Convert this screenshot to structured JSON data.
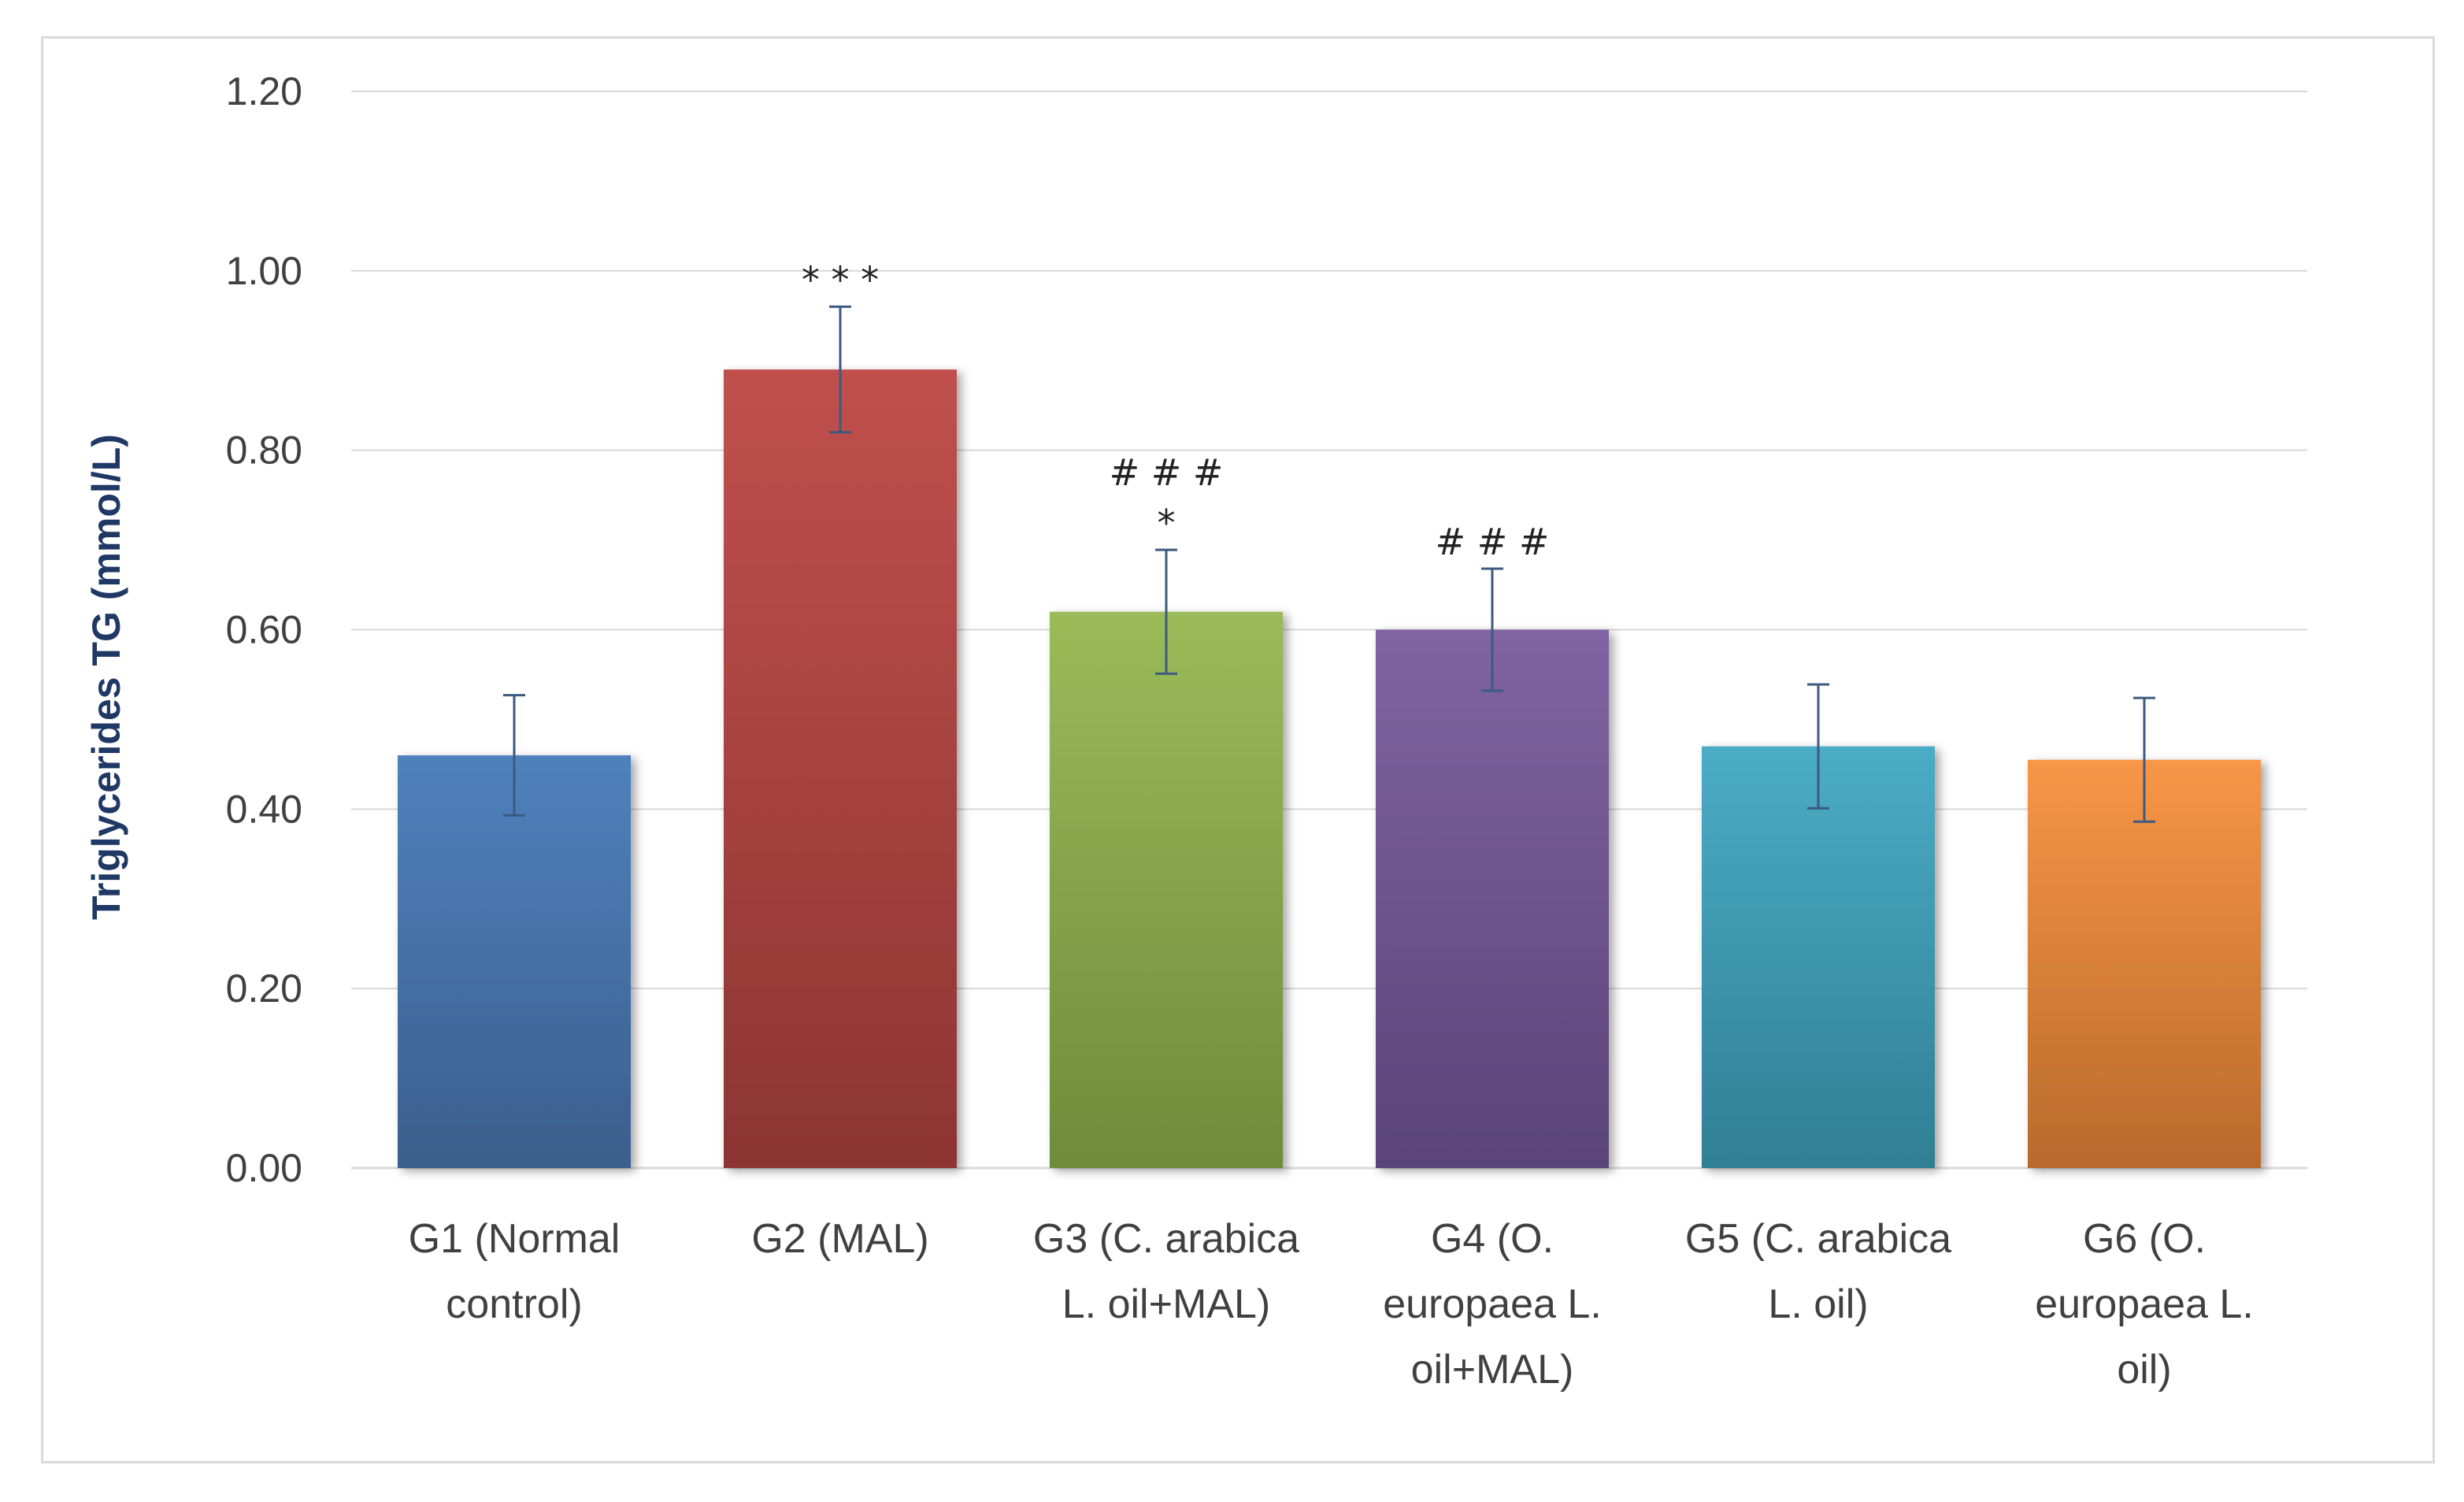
{
  "chart_data": {
    "type": "bar",
    "title": "",
    "xlabel": "",
    "ylabel": "Triglycerides TG (mmol/L)",
    "ylim": [
      0,
      1.2
    ],
    "yticks": [
      "0.00",
      "0.20",
      "0.40",
      "0.60",
      "0.80",
      "1.00",
      "1.20"
    ],
    "grid": true,
    "categories": [
      [
        "G1 (Normal",
        "control)"
      ],
      [
        "G2 (MAL)"
      ],
      [
        "G3 (C. arabica",
        "L. oil+MAL)"
      ],
      [
        "G4 (O.",
        "europaea L.",
        "oil+MAL)"
      ],
      [
        "G5 (C. arabica",
        "L. oil)"
      ],
      [
        "G6 (O.",
        "europaea L.",
        "oil)"
      ]
    ],
    "values": [
      0.46,
      0.89,
      0.62,
      0.6,
      0.47,
      0.455
    ],
    "errors": [
      0.067,
      0.07,
      0.069,
      0.068,
      0.069,
      0.069
    ],
    "annotations": [
      [],
      [
        "* * *"
      ],
      [
        "# # #",
        "*"
      ],
      [
        "# # #"
      ],
      [],
      []
    ],
    "colors": [
      [
        "#4f81bd",
        "#3a5f8c"
      ],
      [
        "#c0504d",
        "#8c3532"
      ],
      [
        "#9bbb59",
        "#6e8c3a"
      ],
      [
        "#8064a2",
        "#5a4478"
      ],
      [
        "#4bacc6",
        "#2f7f94"
      ],
      [
        "#f79646",
        "#b86a2c"
      ]
    ],
    "error_color": "#3d5a80",
    "grid_color": "#d9d9d9"
  }
}
